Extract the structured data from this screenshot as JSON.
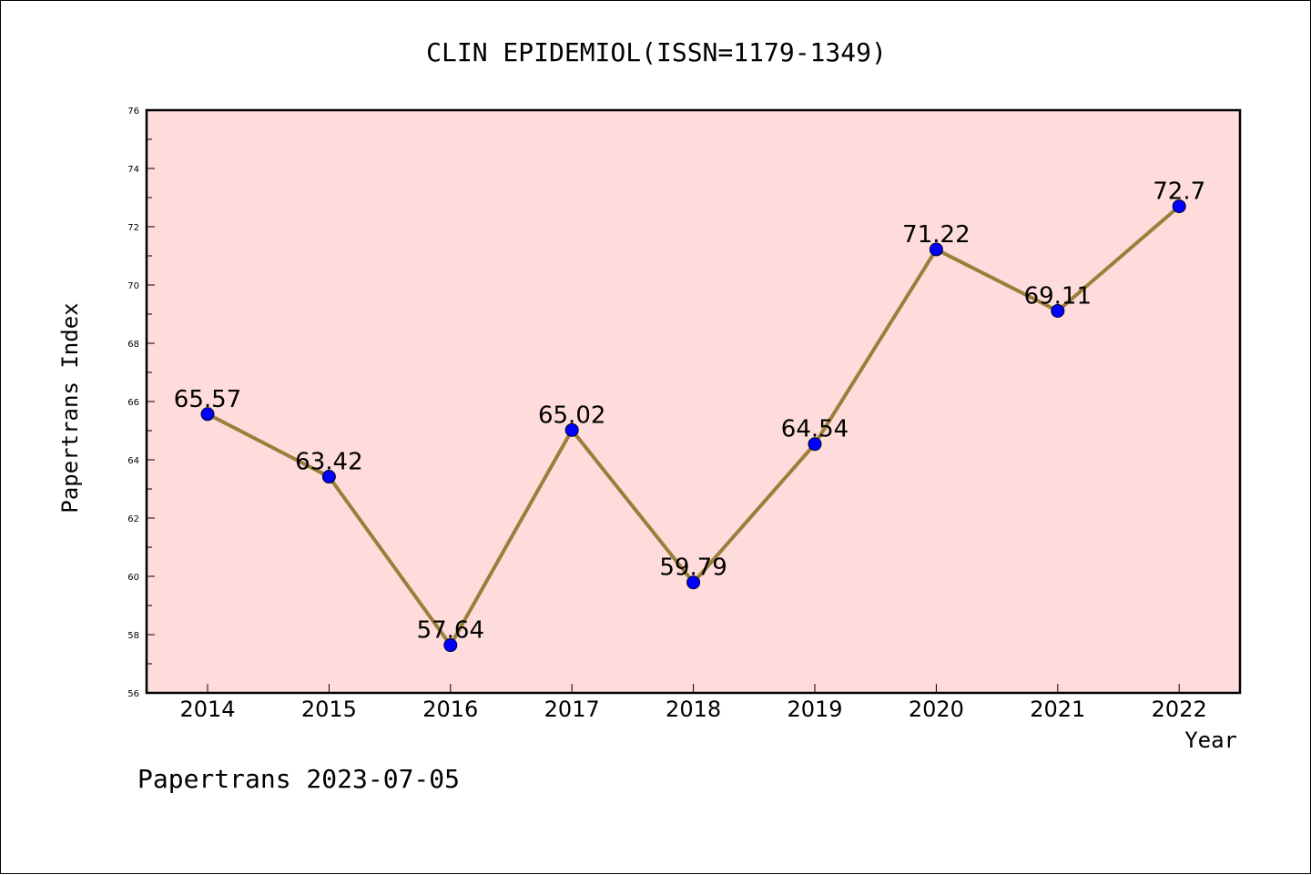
{
  "chart_data": {
    "type": "line",
    "title": "CLIN EPIDEMIOL(ISSN=1179-1349)",
    "xlabel": "Year",
    "ylabel": "Papertrans Index",
    "x": [
      "2014",
      "2015",
      "2016",
      "2017",
      "2018",
      "2019",
      "2020",
      "2021",
      "2022"
    ],
    "series": [
      {
        "values": [
          65.57,
          63.42,
          57.64,
          65.02,
          59.79,
          64.54,
          71.22,
          69.11,
          72.7
        ],
        "labels": [
          "65.57",
          "63.42",
          "57.64",
          "65.02",
          "59.79",
          "64.54",
          "71.22",
          "69.11",
          "72.7"
        ],
        "line_color": "#9a7f3a",
        "marker_color": "#0000ff"
      }
    ],
    "ylim": [
      56,
      76
    ],
    "yticks": [
      "56",
      "58",
      "60",
      "62",
      "64",
      "66",
      "68",
      "70",
      "72",
      "74",
      "76"
    ],
    "plot_background": "#ffdcdc",
    "grid": false,
    "legend": "none"
  },
  "footer": "Papertrans 2023-07-05"
}
